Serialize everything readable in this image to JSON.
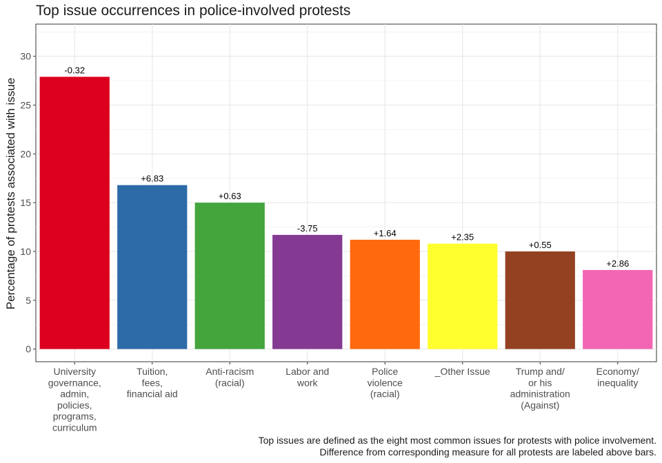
{
  "chart_data": {
    "type": "bar",
    "title": "Top issue occurrences in police-involved protests",
    "xlabel": "",
    "ylabel": "Percentage of protests associated with issue",
    "ylim": [
      -1.3,
      33.3
    ],
    "yticks": [
      0,
      5,
      10,
      15,
      20,
      25,
      30
    ],
    "grid": true,
    "categories": [
      [
        "University",
        "governance,",
        "admin,",
        "policies,",
        "programs,",
        "curriculum"
      ],
      [
        "Tuition,",
        "fees,",
        "financial aid"
      ],
      [
        "Anti-racism",
        "(racial)"
      ],
      [
        "Labor and",
        "work"
      ],
      [
        "Police",
        "violence",
        "(racial)"
      ],
      [
        "_Other Issue"
      ],
      [
        "Trump and/",
        "or his",
        "administration",
        "(Against)"
      ],
      [
        "Economy/",
        "inequality"
      ]
    ],
    "values": [
      27.9,
      16.8,
      15.0,
      11.7,
      11.2,
      10.8,
      10.0,
      8.1
    ],
    "data_labels": [
      "-0.32",
      "+6.83",
      "+0.63",
      "-3.75",
      "+1.64",
      "+2.35",
      "+0.55",
      "+2.86"
    ],
    "colors": [
      "#DC001E",
      "#2D6BA8",
      "#43A53C",
      "#843A93",
      "#FF6A0F",
      "#FFFF2E",
      "#944122",
      "#F266B3"
    ],
    "caption": [
      "Top issues are defined as the eight most common issues for protests with police involvement.",
      "Difference from corresponding measure for all protests are labeled above bars."
    ]
  }
}
